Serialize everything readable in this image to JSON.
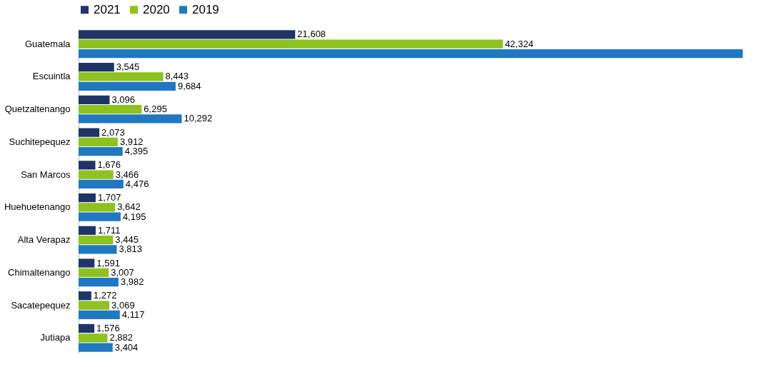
{
  "chart_data": {
    "type": "bar",
    "orientation": "horizontal",
    "categories": [
      "Guatemala",
      "Escuintla",
      "Quetzaltenango",
      "Suchitepequez",
      "San Marcos",
      "Huehuetenango",
      "Alta Verapaz",
      "Chimaltenango",
      "Sacatepequez",
      "Jutiapa"
    ],
    "series": [
      {
        "name": "2021",
        "color": "#1f3468",
        "values": [
          21608,
          3545,
          3096,
          2073,
          1676,
          1707,
          1711,
          1591,
          1272,
          1576
        ],
        "value_labels": [
          "21,608",
          "3,545",
          "3,096",
          "2,073",
          "1,676",
          "1,707",
          "1,711",
          "1,591",
          "1,272",
          "1,576"
        ]
      },
      {
        "name": "2020",
        "color": "#8dc21f",
        "values": [
          42324,
          8443,
          6295,
          3912,
          3466,
          3642,
          3445,
          3007,
          3069,
          2882
        ],
        "value_labels": [
          "42,324",
          "8,443",
          "6,295",
          "3,912",
          "3,466",
          "3,642",
          "3,445",
          "3,007",
          "3,069",
          "2,882"
        ]
      },
      {
        "name": "2019",
        "color": "#1f78c1",
        "values": [
          66250,
          9684,
          10292,
          4395,
          4476,
          4195,
          3813,
          3982,
          4117,
          3404
        ],
        "value_labels": [
          null,
          "9,684",
          "10,292",
          "4,395",
          "4,476",
          "4,195",
          "3,813",
          "3,982",
          "4,117",
          "3,404"
        ]
      }
    ],
    "legend": "top"
  }
}
